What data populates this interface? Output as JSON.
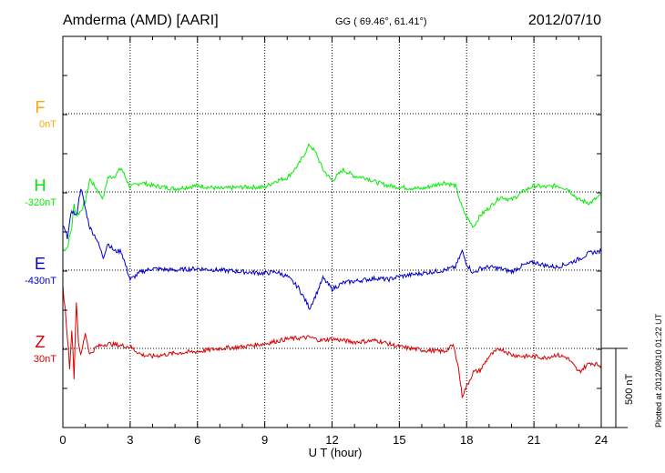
{
  "header": {
    "station": "Amderma (AMD)  [AARI]",
    "coords": "GG ( 69.46°,  61.41°)",
    "date": "2012/07/10"
  },
  "plotted_note": "Plotted at 2012/08/10 01:22 UT",
  "scale_label": "500 nT",
  "chart_data": {
    "type": "line",
    "xlabel": "U T (hour)",
    "ylabel": "",
    "xlim": [
      0,
      24
    ],
    "x_ticks": [
      "0",
      "3",
      "6",
      "9",
      "12",
      "15",
      "18",
      "21",
      "24"
    ],
    "grid": true,
    "scale_bar_nT": 500,
    "units": "nT",
    "components": [
      {
        "letter": "F",
        "baseline_label": "0nT",
        "color": "#FFA500",
        "values": []
      },
      {
        "letter": "H",
        "baseline_label": "-320nT",
        "color": "#00EE00",
        "x": [
          0,
          0.2,
          0.4,
          0.5,
          0.6,
          0.8,
          1.0,
          1.2,
          1.5,
          1.8,
          2.0,
          2.3,
          2.6,
          3.0,
          3.5,
          4.0,
          5.0,
          6.0,
          7.0,
          8.0,
          9.0,
          9.5,
          10.0,
          10.5,
          11.0,
          11.3,
          11.6,
          12.0,
          12.5,
          13.0,
          13.5,
          14.0,
          14.5,
          15.0,
          16.0,
          17.0,
          17.5,
          17.8,
          18.0,
          18.3,
          18.6,
          19.0,
          19.5,
          20.0,
          20.5,
          21.0,
          21.5,
          22.0,
          22.5,
          23.0,
          23.5,
          24.0
        ],
        "values": [
          -370,
          -350,
          -220,
          -80,
          -150,
          -120,
          -60,
          80,
          20,
          -40,
          90,
          100,
          150,
          30,
          60,
          40,
          20,
          40,
          20,
          30,
          30,
          70,
          90,
          170,
          300,
          240,
          140,
          70,
          140,
          100,
          90,
          60,
          40,
          30,
          20,
          60,
          40,
          -100,
          -160,
          -220,
          -150,
          -100,
          -30,
          -50,
          0,
          40,
          30,
          40,
          20,
          -50,
          -70,
          -20
        ]
      },
      {
        "letter": "E",
        "baseline_label": "-430nT",
        "color": "#0000CC",
        "x": [
          0,
          0.2,
          0.4,
          0.6,
          0.8,
          1.0,
          1.2,
          1.5,
          1.8,
          2.0,
          2.3,
          2.6,
          3.0,
          3.5,
          4.0,
          5.0,
          6.0,
          7.0,
          8.0,
          9.0,
          9.5,
          10.0,
          10.5,
          11.0,
          11.3,
          11.6,
          12.0,
          12.5,
          13.0,
          13.5,
          14.0,
          14.5,
          15.0,
          16.0,
          17.0,
          17.5,
          17.8,
          18.0,
          18.3,
          18.6,
          19.0,
          19.5,
          20.0,
          20.5,
          21.0,
          21.5,
          22.0,
          22.5,
          23.0,
          23.5,
          24.0
        ],
        "values": [
          280,
          210,
          380,
          340,
          520,
          390,
          270,
          200,
          80,
          170,
          120,
          120,
          -60,
          -10,
          10,
          0,
          10,
          0,
          -10,
          -20,
          -10,
          -40,
          -110,
          -240,
          -150,
          -50,
          -120,
          -80,
          -70,
          -60,
          -50,
          -60,
          -40,
          -20,
          0,
          20,
          120,
          40,
          -20,
          10,
          20,
          10,
          -10,
          30,
          50,
          30,
          20,
          40,
          70,
          110,
          120
        ]
      },
      {
        "letter": "Z",
        "baseline_label": "30nT",
        "color": "#DD0000",
        "x": [
          0,
          0.1,
          0.2,
          0.3,
          0.4,
          0.5,
          0.6,
          0.7,
          0.8,
          1.0,
          1.2,
          1.5,
          2.0,
          2.5,
          3.0,
          3.5,
          4.0,
          5.0,
          6.0,
          7.0,
          8.0,
          9.0,
          10.0,
          11.0,
          11.5,
          12.0,
          13.0,
          14.0,
          15.0,
          16.0,
          17.0,
          17.4,
          17.6,
          17.8,
          18.0,
          18.3,
          18.6,
          19.0,
          19.5,
          20.0,
          20.5,
          21.0,
          21.5,
          22.0,
          22.5,
          23.0,
          23.5,
          24.0
        ],
        "values": [
          390,
          250,
          80,
          -120,
          120,
          -180,
          300,
          40,
          -50,
          100,
          -40,
          10,
          30,
          20,
          10,
          -40,
          -50,
          -30,
          -20,
          0,
          10,
          30,
          60,
          70,
          50,
          60,
          40,
          50,
          10,
          -10,
          -20,
          20,
          -90,
          -300,
          -240,
          -150,
          -140,
          -50,
          0,
          -40,
          -50,
          -50,
          -60,
          -40,
          -60,
          -150,
          -90,
          -110
        ]
      }
    ]
  }
}
